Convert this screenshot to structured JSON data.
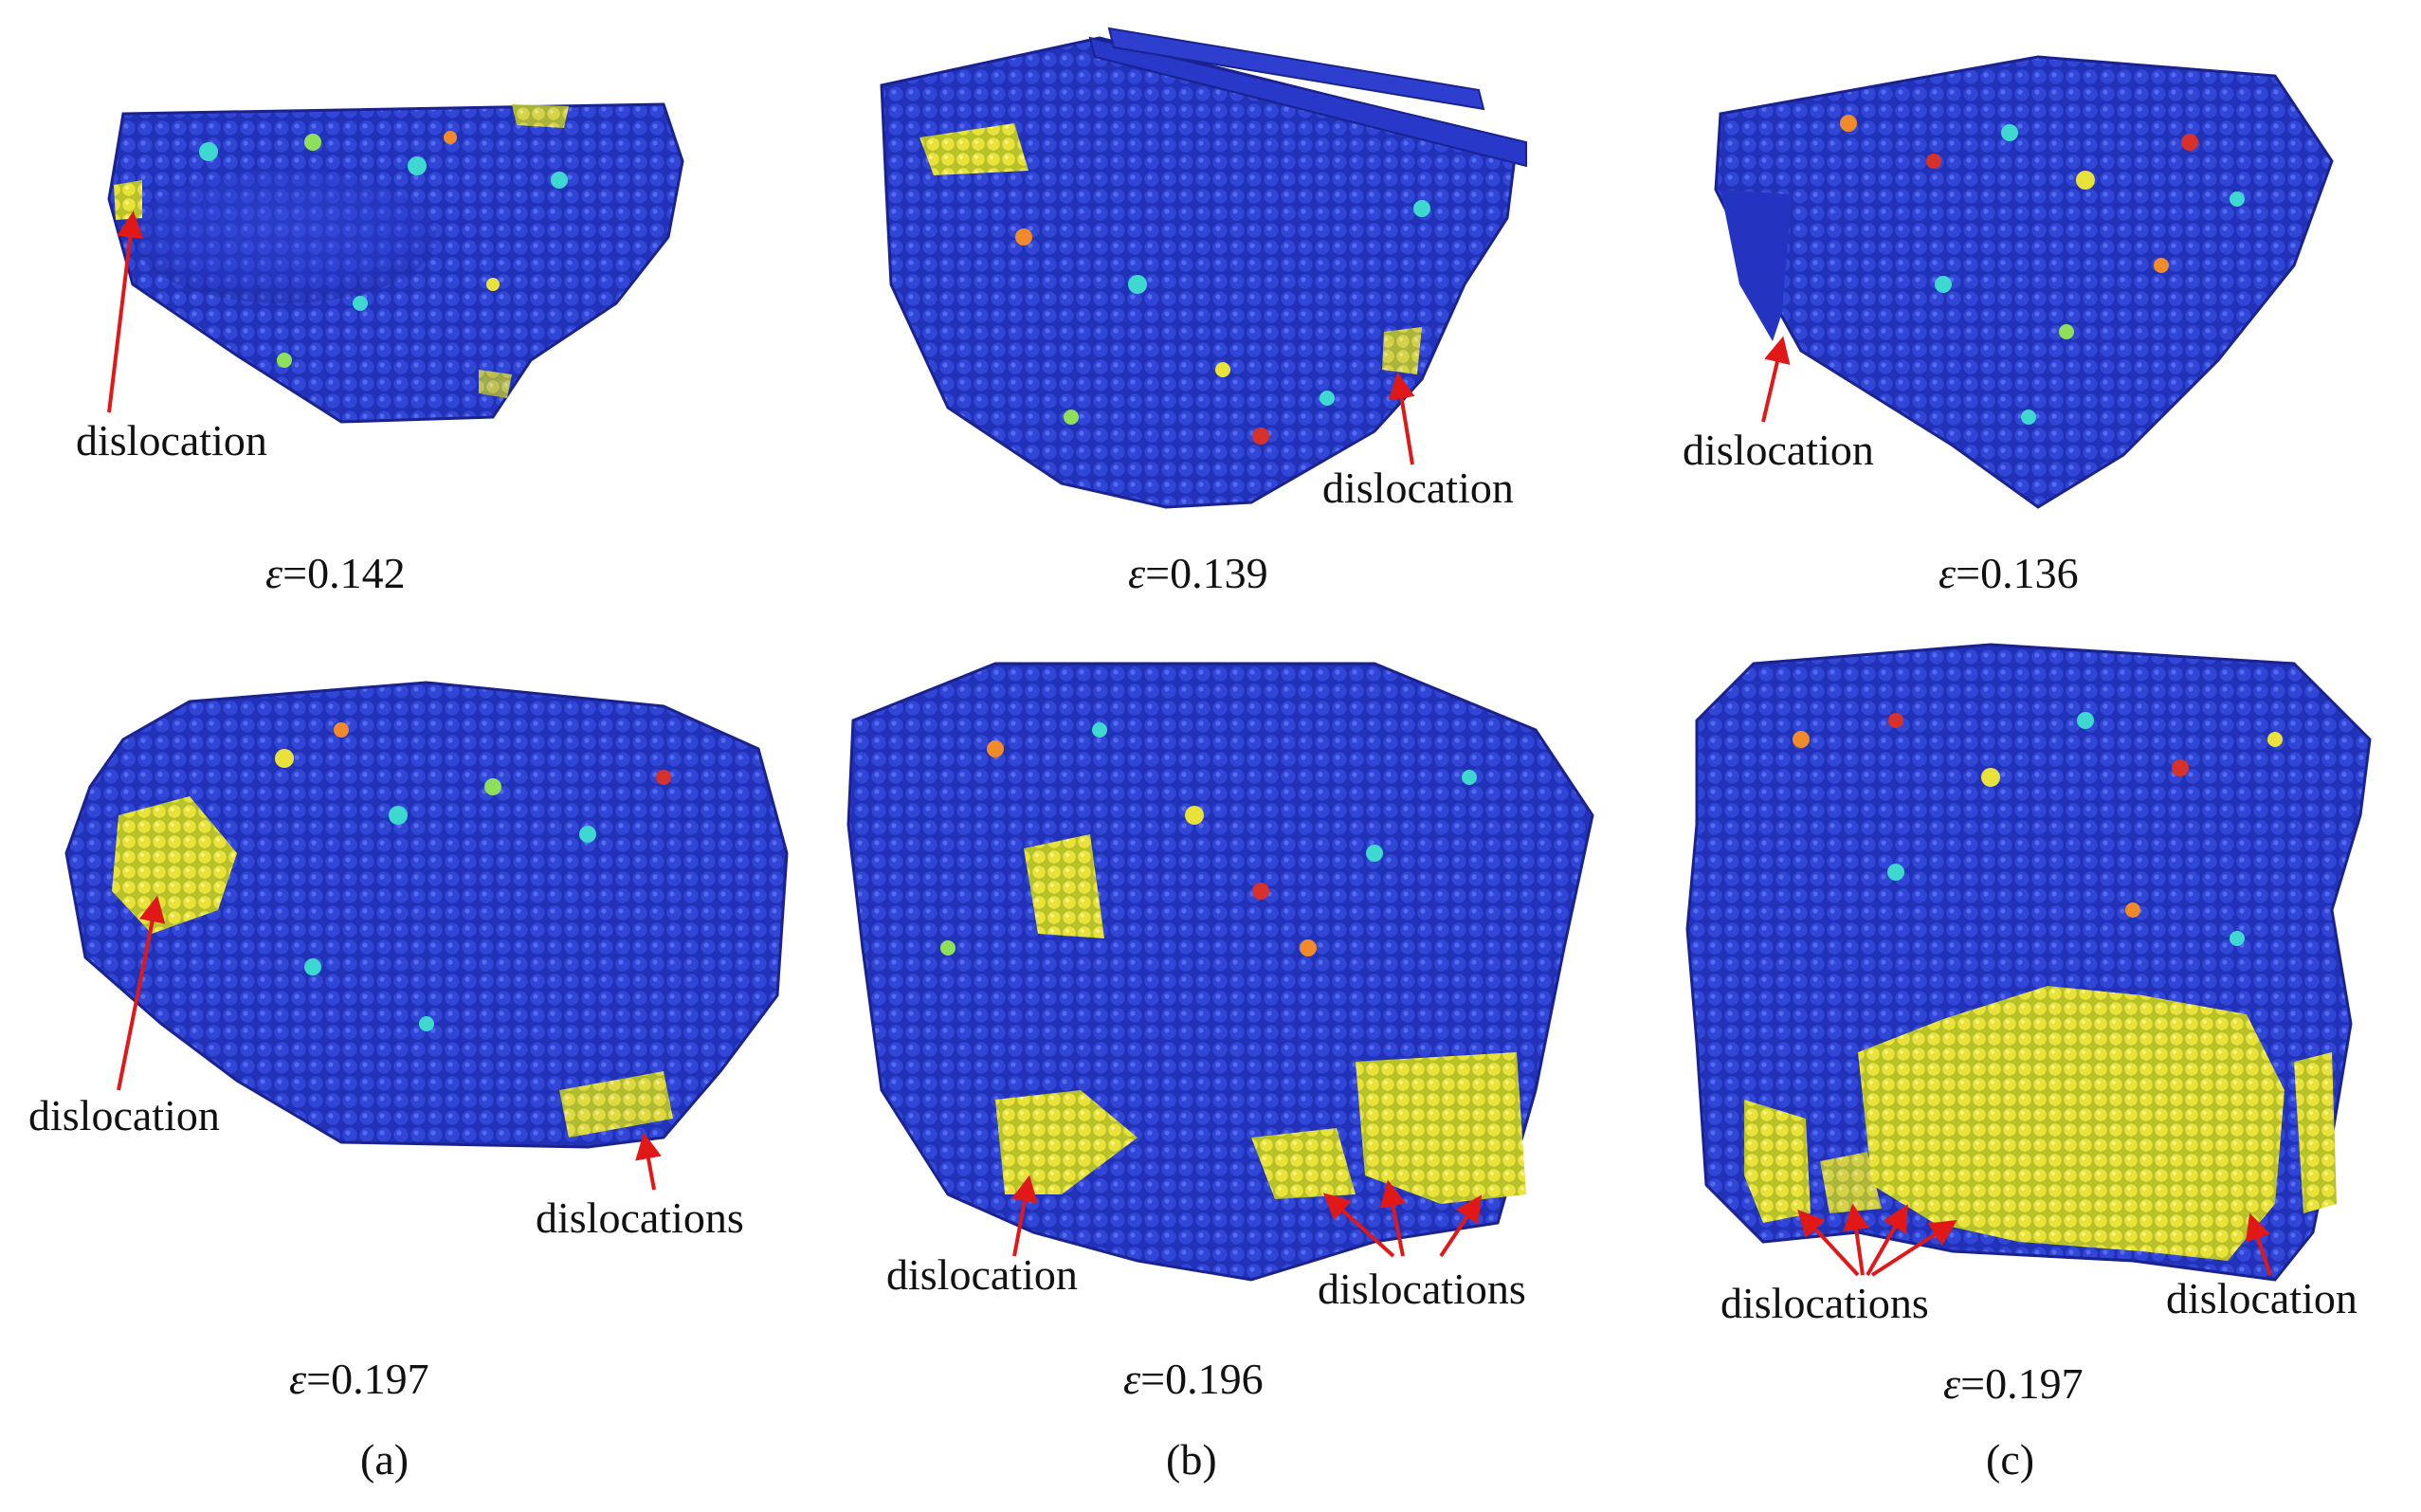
{
  "figure": {
    "panels": [
      {
        "label": "(a)",
        "views": [
          {
            "strain": "0.142",
            "callouts": [
              "dislocation"
            ]
          },
          {
            "strain": "0.197",
            "callouts": [
              "dislocation",
              "dislocations"
            ]
          }
        ]
      },
      {
        "label": "(b)",
        "views": [
          {
            "strain": "0.139",
            "callouts": [
              "dislocation"
            ]
          },
          {
            "strain": "0.196",
            "callouts": [
              "dislocation",
              "dislocations"
            ]
          }
        ]
      },
      {
        "label": "(c)",
        "views": [
          {
            "strain": "0.136",
            "callouts": [
              "dislocation"
            ]
          },
          {
            "strain": "0.197",
            "callouts": [
              "dislocations",
              "dislocation"
            ]
          }
        ]
      }
    ],
    "strain_symbol": "ε",
    "colors": {
      "atom_base": "#2838c8",
      "atom_dark": "#1a1f8a",
      "atom_mid": "#2e9fd8",
      "atom_cyan": "#3ed8d0",
      "atom_green": "#8ee05a",
      "atom_yellow": "#e8e23a",
      "atom_orange": "#f08a2a",
      "atom_red": "#d8302a",
      "arrow": "#e01818"
    }
  }
}
